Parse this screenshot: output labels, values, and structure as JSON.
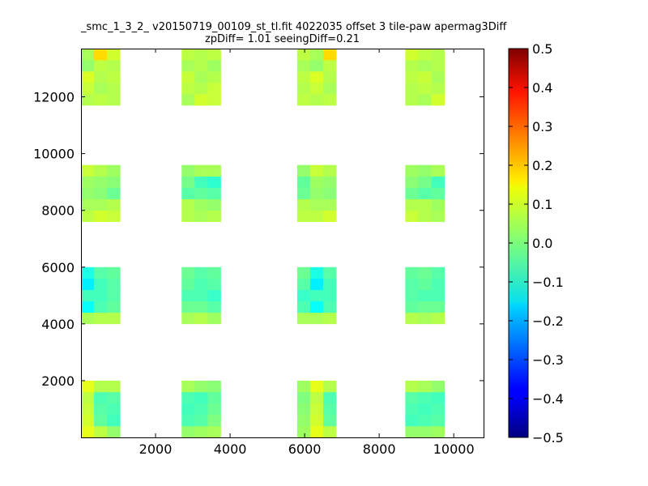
{
  "chart_data": {
    "type": "heatmap",
    "title": "_smc_1_3_2_ v20150719_00109_st_tl.fit 4022035 offset 3 tile-paw apermag3Diff",
    "subtitle": "zpDiff= 1.01 seeingDiff=0.21",
    "xlabel": "",
    "ylabel": "",
    "xlim": [
      0,
      10800
    ],
    "ylim": [
      0,
      13700
    ],
    "x_ticks": [
      "2000",
      "4000",
      "6000",
      "8000",
      "10000"
    ],
    "y_ticks": [
      "2000",
      "4000",
      "6000",
      "8000",
      "10000",
      "12000"
    ],
    "colormap": "jet",
    "colorbar": {
      "range": [
        -0.5,
        0.5
      ],
      "ticks": [
        "0.5",
        "0.4",
        "0.3",
        "0.2",
        "0.1",
        "0.0",
        "−0.1",
        "−0.2",
        "−0.3",
        "−0.4",
        "−0.5"
      ]
    },
    "cell_size": [
      350,
      400
    ],
    "columns": [
      {
        "x_start": 0,
        "cols": 3
      },
      {
        "x_start": 2700,
        "cols": 3
      },
      {
        "x_start": 5800,
        "cols": 3
      },
      {
        "x_start": 8700,
        "cols": 3
      }
    ],
    "row_bands": [
      {
        "y_start": 0,
        "rows": 5
      },
      {
        "y_start": 4000,
        "rows": 5
      },
      {
        "y_start": 7600,
        "rows": 5
      },
      {
        "y_start": 11700,
        "rows": 5
      }
    ],
    "band_width_cells": 7,
    "gaps": [
      "0:0:0,1,2,3",
      "1:0:0,1,2,3",
      "3:1:1,2,3",
      "3:3:0,1,2,3",
      "0:1:1,2,3,4",
      "1:1:1,2,3,4",
      "0:2:0,4",
      "1:2:1,2,3",
      "0:3:0,1,2",
      "1:3:0,1,2,3",
      "0:0:0",
      "2:2:0",
      "3:2:0,1"
    ],
    "values": {
      "0": [
        [
          0.1,
          0.06,
          0.02,
          0.02,
          0.03,
          0.04,
          0.03
        ],
        [
          0.08,
          -0.03,
          -0.06,
          -0.05,
          -0.04,
          0.0,
          0.02
        ],
        [
          0.07,
          -0.04,
          -0.05,
          -0.06,
          -0.05,
          -0.02,
          0.01
        ],
        [
          0.06,
          -0.05,
          -0.04,
          -0.05,
          -0.06,
          -0.03,
          0.0
        ],
        [
          0.1,
          0.05,
          0.05,
          0.04,
          0.02,
          0.01,
          0.03
        ]
      ],
      "1": [
        [
          0.04,
          0.05,
          0.05,
          0.04,
          0.05,
          0.03,
          0.04
        ],
        [
          -0.12,
          -0.05,
          -0.03,
          -0.02,
          -0.02,
          -0.04,
          -0.05
        ],
        [
          -0.06,
          -0.06,
          -0.04,
          -0.05,
          -0.05,
          -0.07,
          -0.07
        ],
        [
          -0.14,
          -0.06,
          -0.04,
          -0.03,
          -0.05,
          -0.04,
          -0.04
        ],
        [
          -0.1,
          -0.04,
          -0.03,
          -0.02,
          -0.04,
          -0.03,
          -0.02
        ]
      ],
      "2": [
        [
          0.06,
          0.08,
          0.07,
          0.05,
          0.04,
          0.05,
          0.06
        ],
        [
          0.04,
          0.04,
          0.05,
          0.05,
          0.03,
          0.02,
          0.05
        ],
        [
          0.02,
          0.01,
          -0.02,
          -0.04,
          -0.03,
          -0.04,
          -0.02
        ],
        [
          0.03,
          0.02,
          0.01,
          -0.01,
          -0.06,
          -0.08,
          -0.03
        ],
        [
          0.07,
          0.05,
          0.03,
          0.02,
          0.04,
          0.04,
          0.02
        ]
      ],
      "3": [
        [
          0.05,
          0.06,
          0.05,
          0.04,
          0.08,
          0.07,
          0.06
        ],
        [
          0.07,
          0.04,
          0.05,
          0.06,
          0.05,
          0.07,
          0.05
        ],
        [
          0.09,
          0.05,
          0.06,
          0.07,
          0.04,
          0.05,
          0.06
        ],
        [
          0.02,
          0.06,
          0.05,
          0.04,
          0.05,
          0.03,
          0.04
        ],
        [
          0.04,
          0.16,
          0.08,
          0.06,
          0.05,
          0.06,
          0.06
        ]
      ]
    }
  }
}
